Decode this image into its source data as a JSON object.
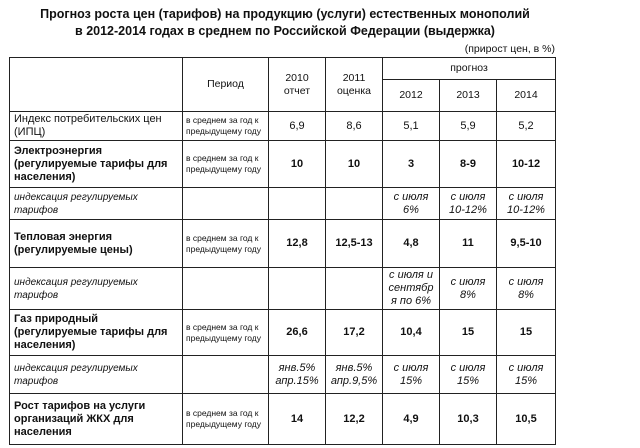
{
  "title_line1": "Прогноз роста цен (тарифов) на продукцию (услуги) естественных монополий",
  "title_line2": "в 2012-2014 годах в среднем по Российской Федерации (выдержка)",
  "unit_note": "(прирост цен, в %)",
  "header": {
    "period": "Период",
    "y2010": "2010",
    "y2010_sub": "отчет",
    "y2011": "2011",
    "y2011_sub": "оценка",
    "forecast": "прогноз",
    "y2012": "2012",
    "y2013": "2013",
    "y2014": "2014"
  },
  "rows": [
    {
      "name": "Индекс потребительских цен (ИПЦ)",
      "period": "в среднем за год к предыдущему году",
      "v": [
        "6,9",
        "8,6",
        "5,1",
        "5,9",
        "5,2"
      ]
    },
    {
      "name": "Электроэнергия (регулируемые тарифы для населения)",
      "period": "в среднем за год к предыдущему году",
      "v": [
        "10",
        "10",
        "3",
        "8-9",
        "10-12"
      ]
    },
    {
      "name": "индексация регулируемых тарифов",
      "period": "",
      "v": [
        "",
        "",
        "с июля 6%",
        "с июля 10-12%",
        "с июля 10-12%"
      ]
    },
    {
      "name": "Тепловая энергия (регулируемые цены)",
      "period": "в среднем за год к предыдущему году",
      "v": [
        "12,8",
        "12,5-13",
        "4,8",
        "11",
        "9,5-10"
      ]
    },
    {
      "name": "индексация регулируемых тарифов",
      "period": "",
      "v": [
        "",
        "",
        "с июля и сентября по 6%",
        "с июля 8%",
        "с июля 8%"
      ]
    },
    {
      "name": "Газ природный (регулируемые тарифы для населения)",
      "period": "в среднем за год к предыдущему году",
      "v": [
        "26,6",
        "17,2",
        "10,4",
        "15",
        "15"
      ]
    },
    {
      "name": "индексация регулируемых тарифов",
      "period": "",
      "v": [
        "янв.5% апр.15%",
        "янв.5% апр.9,5%",
        "с июля 15%",
        "с июля 15%",
        "с июля 15%"
      ]
    },
    {
      "name": "Рост тарифов на услуги организаций ЖКХ для населения",
      "period": "в среднем за год к предыдущему году",
      "v": [
        "14",
        "12,2",
        "4,9",
        "10,3",
        "10,5"
      ]
    }
  ]
}
